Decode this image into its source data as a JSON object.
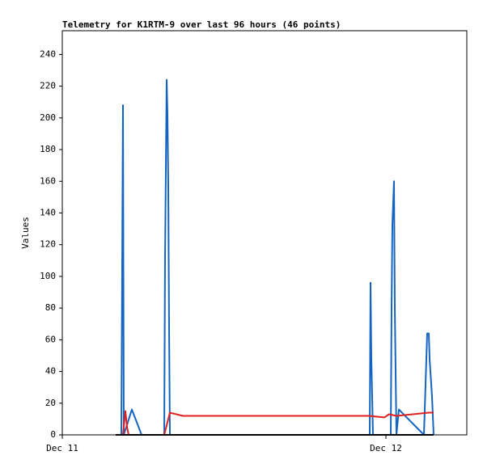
{
  "chart_data": {
    "type": "line",
    "title": "Telemetry for K1RTM-9 over last 96 hours (46 points)",
    "y_label": "Values",
    "xlim": [
      0,
      30
    ],
    "xticks": [
      {
        "value": 0,
        "label": "Dec 11"
      },
      {
        "value": 24,
        "label": "Dec 12"
      }
    ],
    "ylim": [
      0,
      255
    ],
    "yticks": [
      0,
      20,
      40,
      60,
      80,
      100,
      120,
      140,
      160,
      180,
      200,
      220,
      240
    ],
    "grid": false,
    "series": [
      {
        "color": "#1565c0",
        "x": [
          3.96,
          4.38,
          4.44,
          4.5,
          4.56,
          5.16,
          5.88,
          7.56,
          7.62,
          7.74,
          7.8,
          7.86,
          7.92,
          7.98,
          22.8,
          22.86,
          22.92,
          23.04,
          24.36,
          24.42,
          24.48,
          24.6,
          24.66,
          24.78,
          24.96,
          26.82,
          27.06,
          27.18,
          27.24,
          27.42,
          27.54
        ],
        "values": [
          0,
          0,
          104,
          208,
          0,
          16,
          0,
          0,
          112,
          224,
          202,
          157,
          67,
          0,
          0,
          96,
          48,
          0,
          0,
          80,
          133,
          160,
          80,
          0,
          16,
          0,
          64,
          64,
          48,
          24,
          0
        ]
      },
      {
        "color": "#e02020",
        "x": [
          4.5,
          4.68,
          4.8,
          4.92,
          7.56,
          7.98,
          8.94,
          22.74,
          23.88,
          24.24,
          24.78,
          27.18,
          27.54
        ],
        "values": [
          0,
          15,
          5,
          0,
          0,
          14,
          12,
          12,
          11,
          13,
          12,
          14,
          14
        ]
      },
      {
        "color": "#000000",
        "x": [
          3.96,
          27.54
        ],
        "values": [
          0,
          0
        ]
      }
    ]
  }
}
